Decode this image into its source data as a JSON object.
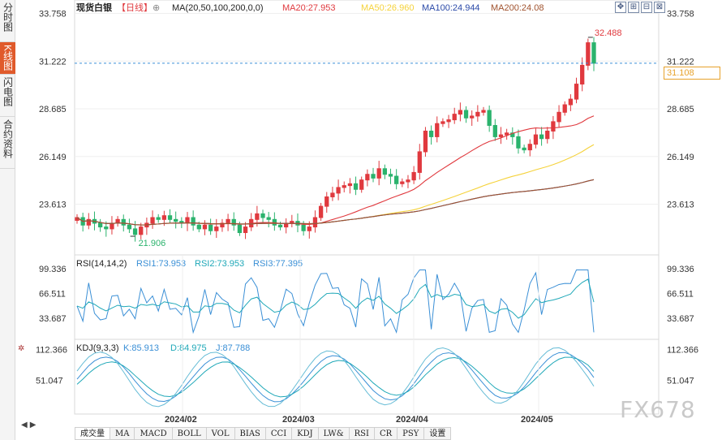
{
  "left_tabs": [
    {
      "label": "分时图",
      "active": false
    },
    {
      "label": "K线图",
      "active": true
    },
    {
      "label": "闪电图",
      "active": false
    },
    {
      "label": "合约资料",
      "active": false
    }
  ],
  "header": {
    "title": "现货白银",
    "period": "【日线】",
    "gear": "⊕",
    "ma_params": "MA(20,50,100,200,0,0)",
    "ma20": "MA20:27.953",
    "ma50": "MA50:26.960",
    "ma100": "MA100:24.944",
    "ma200": "MA200:24.08"
  },
  "tool_icons": [
    "move-icon",
    "zoom-in-icon",
    "zoom-out-icon",
    "fullscreen-icon"
  ],
  "tool_glyphs": [
    "✥",
    "⊞",
    "⊟",
    "⊠"
  ],
  "price_axis": [
    "33.758",
    "31.222",
    "28.685",
    "26.149",
    "23.613"
  ],
  "last_price": "31.108",
  "marker_high": "32.488",
  "marker_low": "21.906",
  "rsi": {
    "title": "RSI(14,14,2)",
    "rsi1": "RSI1:73.953",
    "rsi2": "RSI2:73.953",
    "rsi3": "RSI3:77.395",
    "axis": [
      "99.336",
      "66.511",
      "33.687"
    ]
  },
  "kdj": {
    "title": "KDJ(9,3,3)",
    "k": "K:85.913",
    "d": "D:84.975",
    "j": "J:87.788",
    "axis": [
      "112.366",
      "51.047"
    ]
  },
  "x_axis": [
    "2024/02",
    "2024/03",
    "2024/04",
    "2024/05"
  ],
  "bottom_tabs": [
    "成交量",
    "MA",
    "MACD",
    "BOLL",
    "VOL",
    "BIAS",
    "CCI",
    "KDJ",
    "LW&",
    "RSI",
    "CR",
    "PSY",
    "设置"
  ],
  "watermark": "FX678",
  "colors": {
    "up": "#e0393e",
    "down": "#2bb36d",
    "ma20": "#e0393e",
    "ma50": "#f5d23a",
    "ma100": "#2b4aa8",
    "ma200": "#a0522d",
    "rsi1": "#3a8fd6",
    "rsi2": "#1fa8b8",
    "kdj_k": "#3a8fd6",
    "kdj_d": "#1fa8b8",
    "kdj_j": "#66bcd6"
  },
  "chart_data": {
    "type": "candlestick",
    "title": "现货白银",
    "ylim": [
      21.0,
      34.3
    ],
    "closes": [
      22.9,
      22.5,
      22.8,
      22.6,
      22.4,
      22.3,
      22.6,
      22.8,
      22.5,
      22.3,
      22.0,
      22.4,
      22.6,
      22.9,
      22.8,
      23.0,
      22.8,
      22.7,
      22.6,
      22.9,
      22.5,
      22.3,
      22.5,
      22.2,
      22.4,
      22.6,
      22.8,
      22.5,
      22.1,
      22.4,
      22.8,
      23.1,
      22.9,
      22.8,
      22.5,
      22.4,
      22.6,
      22.7,
      22.5,
      22.2,
      22.4,
      22.9,
      23.5,
      24.0,
      24.2,
      24.5,
      24.6,
      24.7,
      24.4,
      24.9,
      25.2,
      25.0,
      25.5,
      25.2,
      25.1,
      24.7,
      24.8,
      24.9,
      25.3,
      26.4,
      27.5,
      27.2,
      27.9,
      28.0,
      28.1,
      28.4,
      28.6,
      28.2,
      28.3,
      28.5,
      28.6,
      27.8,
      27.2,
      27.3,
      27.4,
      27.2,
      26.6,
      26.5,
      26.8,
      27.3,
      27.1,
      27.5,
      28.0,
      28.5,
      28.9,
      29.2,
      30.0,
      31.0,
      32.2,
      31.11
    ],
    "x_ticks": [
      "2024/02",
      "2024/03",
      "2024/04",
      "2024/05"
    ],
    "series": [
      {
        "name": "MA20",
        "value": 27.953
      },
      {
        "name": "MA50",
        "value": 26.96
      },
      {
        "name": "MA100",
        "value": 24.944
      },
      {
        "name": "MA200",
        "value": 24.08
      }
    ]
  }
}
